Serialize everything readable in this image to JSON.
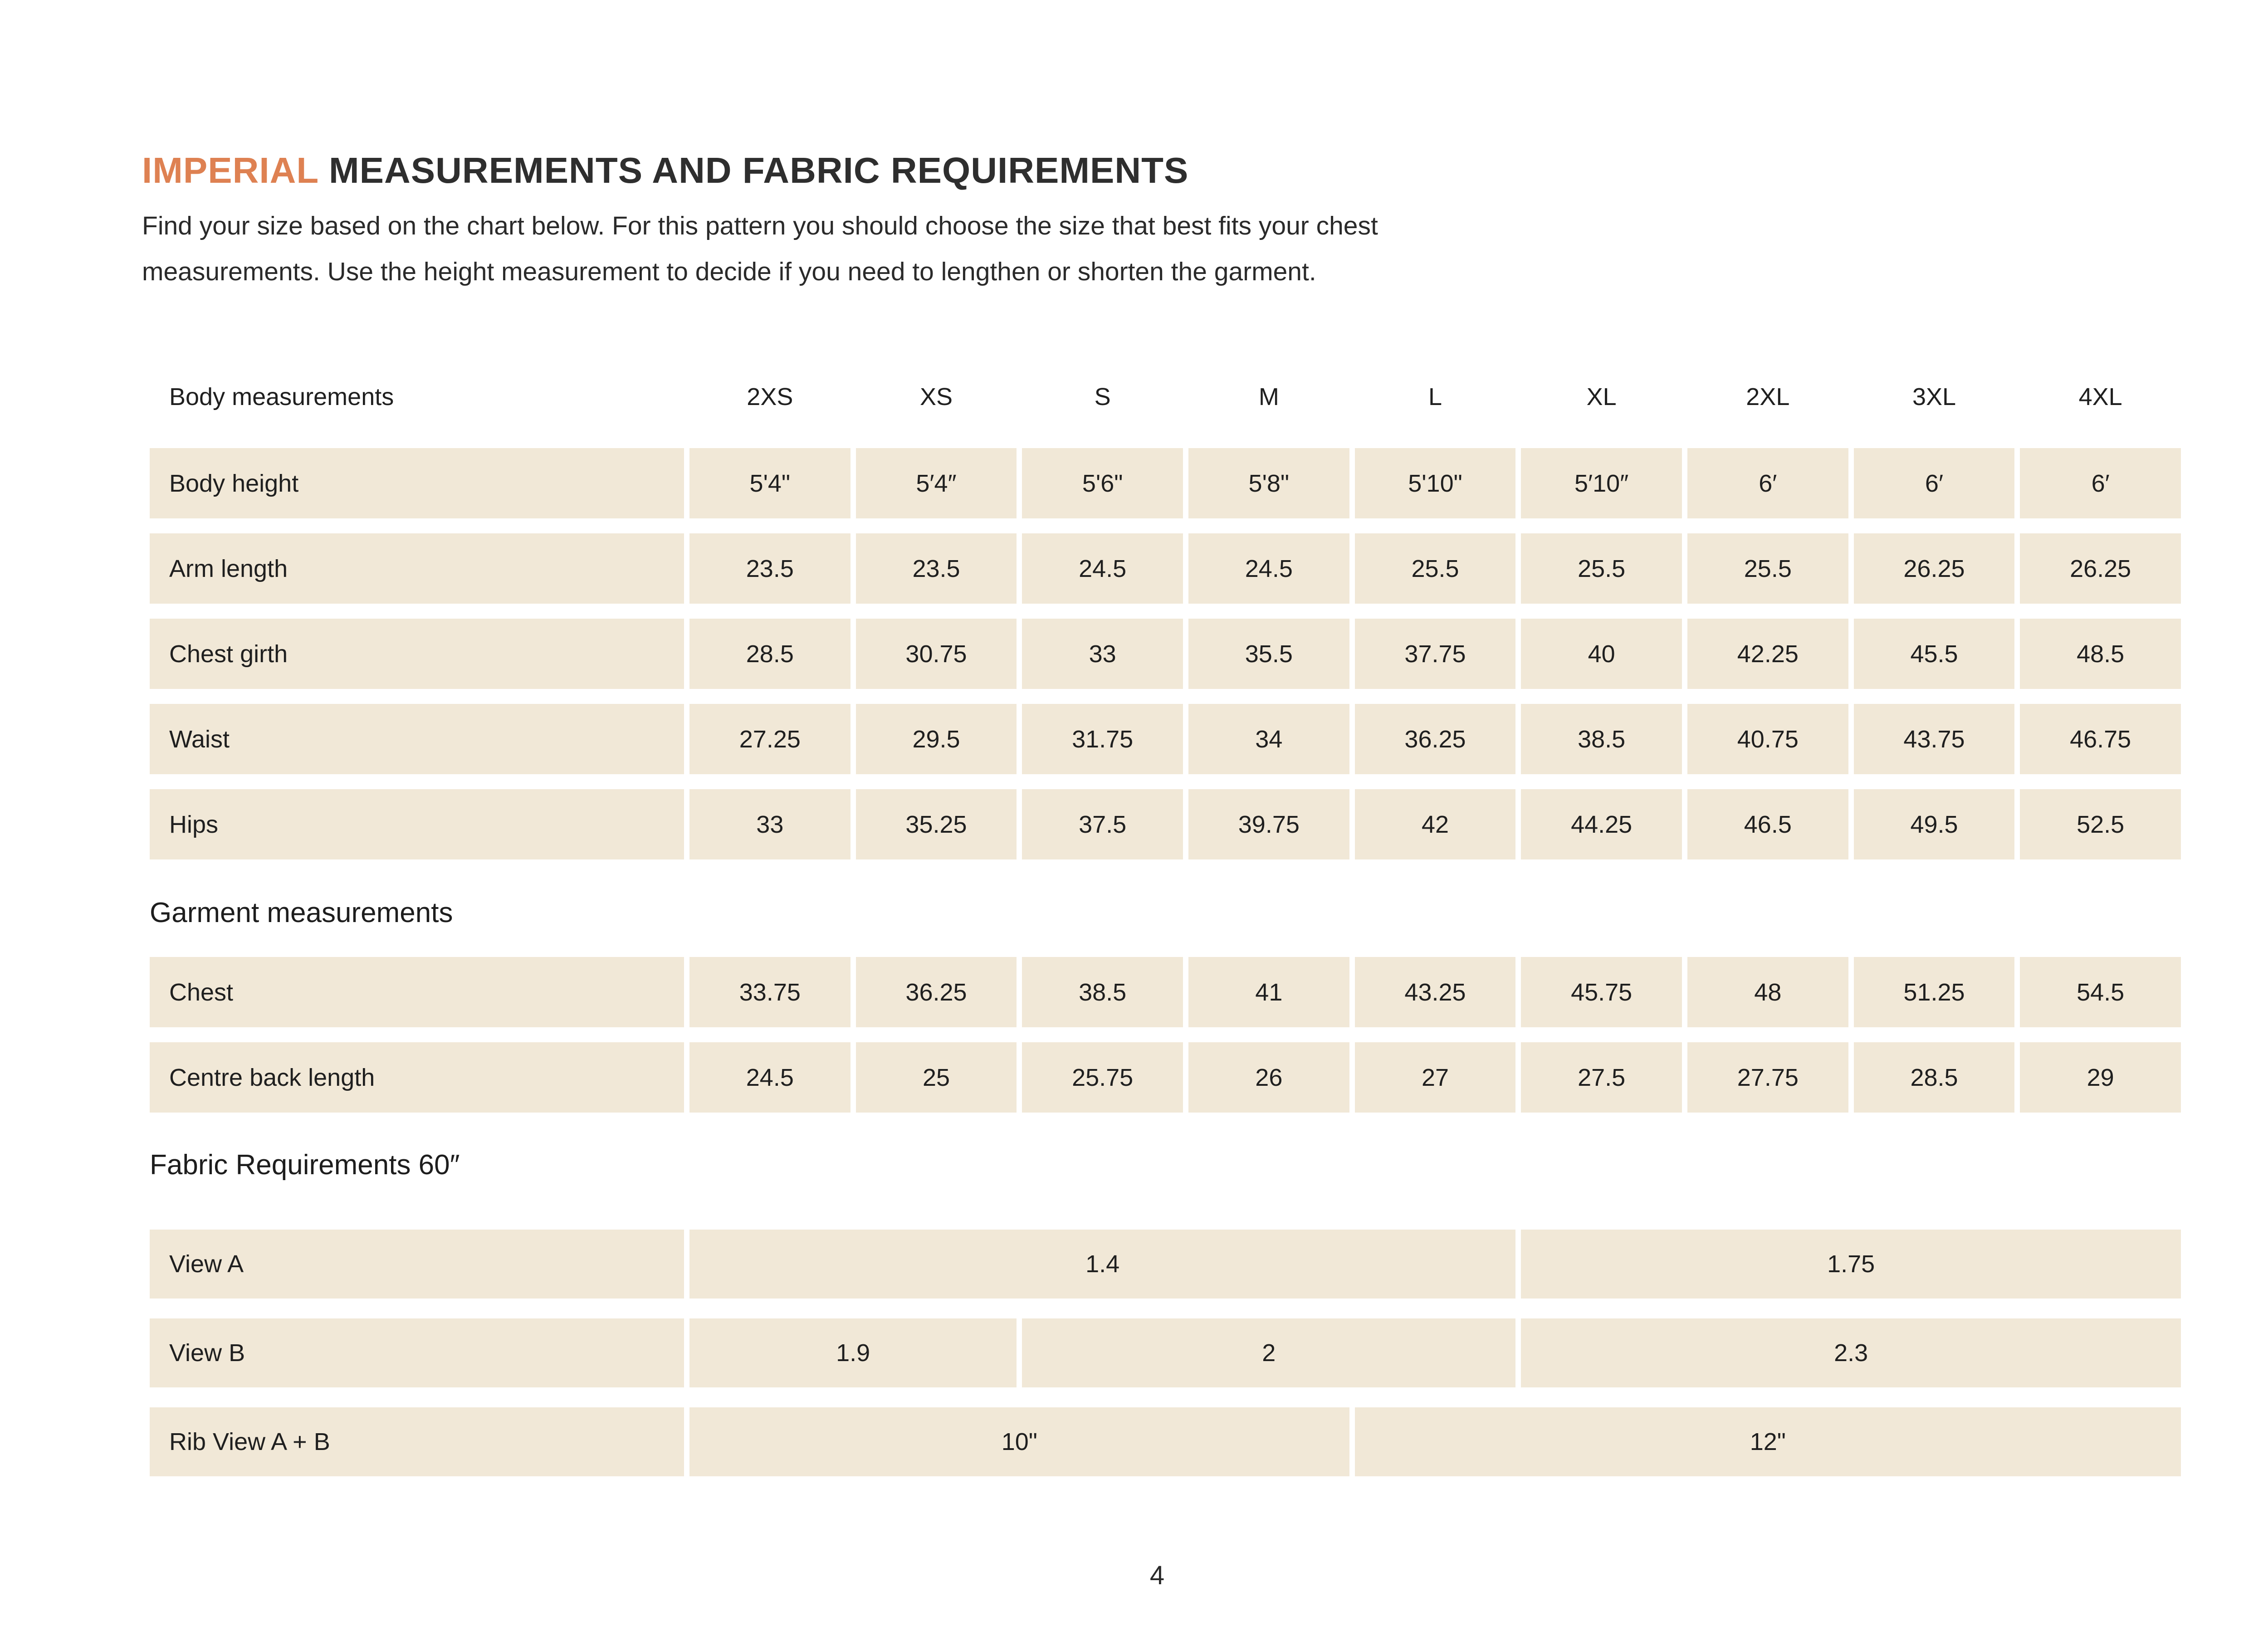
{
  "page": {
    "title_highlight": "IMPERIAL",
    "title_rest": " MEASUREMENTS AND FABRIC REQUIREMENTS",
    "intro_line1": "Find your size based on the chart below. For this pattern you should choose the size that best fits your chest",
    "intro_line2": "measurements. Use the height measurement to decide if you need to lengthen or shorten the garment.",
    "page_number": "4"
  },
  "colors": {
    "accent_orange": "#DE8152",
    "row_beige": "#F1E8D7",
    "text_dark": "#1F1F1F"
  },
  "size_table": {
    "header_label": "Body measurements",
    "sizes": [
      "2XS",
      "XS",
      "S",
      "M",
      "L",
      "XL",
      "2XL",
      "3XL",
      "4XL"
    ],
    "body_rows": [
      {
        "label": "Body height",
        "values": [
          "5'4\"",
          "5′4″",
          "5'6\"",
          "5'8\"",
          "5'10\"",
          "5′10″",
          "6′",
          "6′",
          "6′"
        ]
      },
      {
        "label": "Arm length",
        "values": [
          "23.5",
          "23.5",
          "24.5",
          "24.5",
          "25.5",
          "25.5",
          "25.5",
          "26.25",
          "26.25"
        ]
      },
      {
        "label": "Chest girth",
        "values": [
          "28.5",
          "30.75",
          "33",
          "35.5",
          "37.75",
          "40",
          "42.25",
          "45.5",
          "48.5"
        ]
      },
      {
        "label": "Waist",
        "values": [
          "27.25",
          "29.5",
          "31.75",
          "34",
          "36.25",
          "38.5",
          "40.75",
          "43.75",
          "46.75"
        ]
      },
      {
        "label": "Hips",
        "values": [
          "33",
          "35.25",
          "37.5",
          "39.75",
          "42",
          "44.25",
          "46.5",
          "49.5",
          "52.5"
        ]
      }
    ],
    "garment_heading": "Garment measurements",
    "garment_rows": [
      {
        "label": "Chest",
        "values": [
          "33.75",
          "36.25",
          "38.5",
          "41",
          "43.25",
          "45.75",
          "48",
          "51.25",
          "54.5"
        ]
      },
      {
        "label": "Centre back length",
        "values": [
          "24.5",
          "25",
          "25.75",
          "26",
          "27",
          "27.5",
          "27.75",
          "28.5",
          "29"
        ]
      }
    ],
    "fabric_heading": "Fabric Requirements 60″",
    "fabric_rows": [
      {
        "label": "View A",
        "cells": [
          {
            "span": 5,
            "value": "1.4"
          },
          {
            "span": 4,
            "value": "1.75"
          }
        ]
      },
      {
        "label": "View B",
        "cells": [
          {
            "span": 2,
            "value": "1.9"
          },
          {
            "span": 3,
            "value": "2"
          },
          {
            "span": 4,
            "value": "2.3"
          }
        ]
      },
      {
        "label": "Rib View A + B",
        "cells": [
          {
            "span": 4,
            "value": "10\""
          },
          {
            "span": 5,
            "value": "12\""
          }
        ]
      }
    ]
  }
}
